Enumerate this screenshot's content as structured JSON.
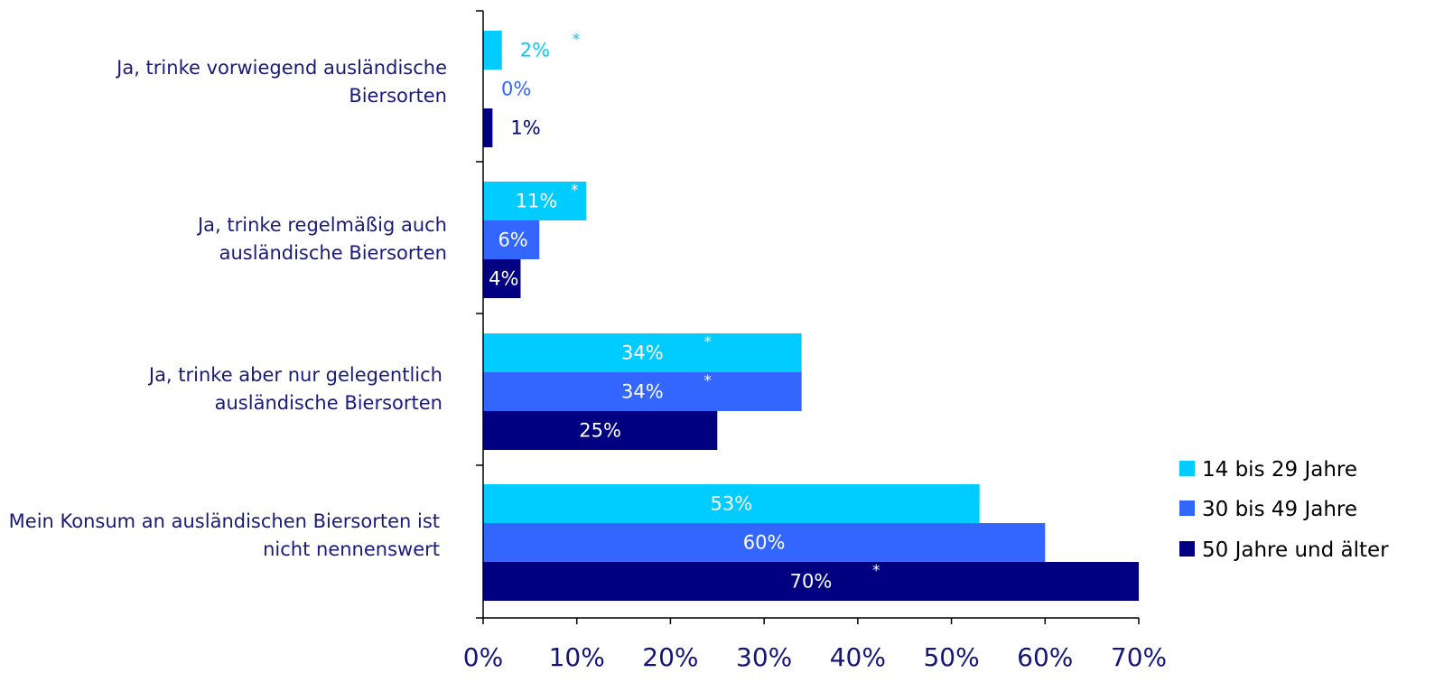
{
  "chart_data": {
    "type": "bar",
    "orientation": "horizontal",
    "categories": [
      [
        "Ja, trinke vorwiegend ausländische",
        "Biersorten"
      ],
      [
        "Ja, trinke regelmäßig auch",
        "ausländische Biersorten"
      ],
      [
        "Ja, trinke aber nur gelegentlich",
        "ausländische Biersorten"
      ],
      [
        "Mein Konsum an ausländischen Biersorten ist",
        "nicht nennenswert"
      ]
    ],
    "series": [
      {
        "name": "14 bis 29 Jahre",
        "color": "#00CCFF",
        "values": [
          2,
          11,
          34,
          53
        ],
        "labels": [
          "2%",
          "11%",
          "34%",
          "53%"
        ],
        "stars": [
          true,
          true,
          true,
          false
        ]
      },
      {
        "name": "30 bis 49 Jahre",
        "color": "#3366FF",
        "values": [
          0,
          6,
          34,
          60
        ],
        "labels": [
          "0%",
          "6%",
          "34%",
          "60%"
        ],
        "stars": [
          false,
          false,
          true,
          false
        ]
      },
      {
        "name": "50 Jahre und älter",
        "color": "#000080",
        "values": [
          1,
          4,
          25,
          70
        ],
        "labels": [
          "1%",
          "4%",
          "25%",
          "70%"
        ],
        "stars": [
          false,
          false,
          false,
          true
        ]
      }
    ],
    "star_symbol": "*",
    "xlim": [
      0,
      70
    ],
    "ticks": [
      0,
      10,
      20,
      30,
      40,
      50,
      60,
      70
    ],
    "tick_labels": [
      "0%",
      "10%",
      "20%",
      "30%",
      "40%",
      "50%",
      "60%",
      "70%"
    ],
    "legend_position": "bottom-right",
    "grid": false
  }
}
